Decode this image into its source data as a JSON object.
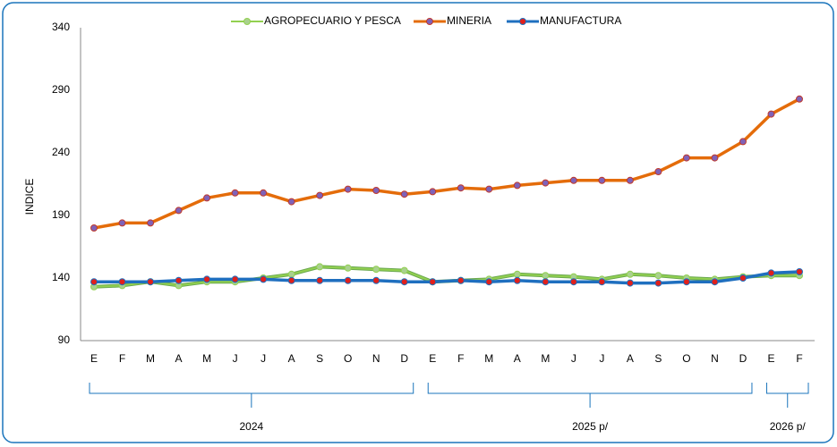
{
  "chart_data": {
    "type": "line",
    "y_label": "INDICE",
    "category_groups": [
      {
        "label": "2024",
        "categories": [
          "E",
          "F",
          "M",
          "A",
          "M",
          "J",
          "J",
          "A",
          "S",
          "O",
          "N",
          "D"
        ]
      },
      {
        "label": "2025 p/",
        "categories": [
          "E",
          "F",
          "M",
          "A",
          "M",
          "J",
          "J",
          "A",
          "S",
          "O",
          "N",
          "D"
        ]
      },
      {
        "label": "2026 p/",
        "categories": [
          "E",
          "F"
        ]
      }
    ],
    "series": [
      {
        "name": "AGROPECUARIO Y PESCA",
        "color": "#92d050",
        "marker_color": "#a9d18e",
        "values": [
          133,
          134,
          137,
          134,
          137,
          137,
          140,
          143,
          149,
          148,
          147,
          146,
          137,
          138,
          139,
          143,
          142,
          141,
          139,
          143,
          142,
          140,
          139,
          141,
          142,
          142
        ]
      },
      {
        "name": "MINERIA",
        "color": "#e46c0a",
        "marker_color": "#7f62b8",
        "values": [
          180,
          184,
          184,
          194,
          204,
          208,
          208,
          201,
          206,
          211,
          210,
          207,
          209,
          212,
          211,
          214,
          216,
          218,
          218,
          218,
          225,
          236,
          236,
          249,
          271,
          283
        ]
      },
      {
        "name": "MANUFACTURA",
        "color": "#1f6fbf",
        "marker_color": "#e0201b",
        "values": [
          137,
          137,
          137,
          138,
          139,
          139,
          139,
          138,
          138,
          138,
          138,
          137,
          137,
          138,
          137,
          138,
          137,
          137,
          137,
          136,
          136,
          137,
          137,
          140,
          144,
          145
        ]
      }
    ],
    "ylim": [
      90,
      340
    ],
    "yticks": [
      90,
      140,
      190,
      240,
      290,
      340
    ],
    "grid": false,
    "legend": "top"
  }
}
